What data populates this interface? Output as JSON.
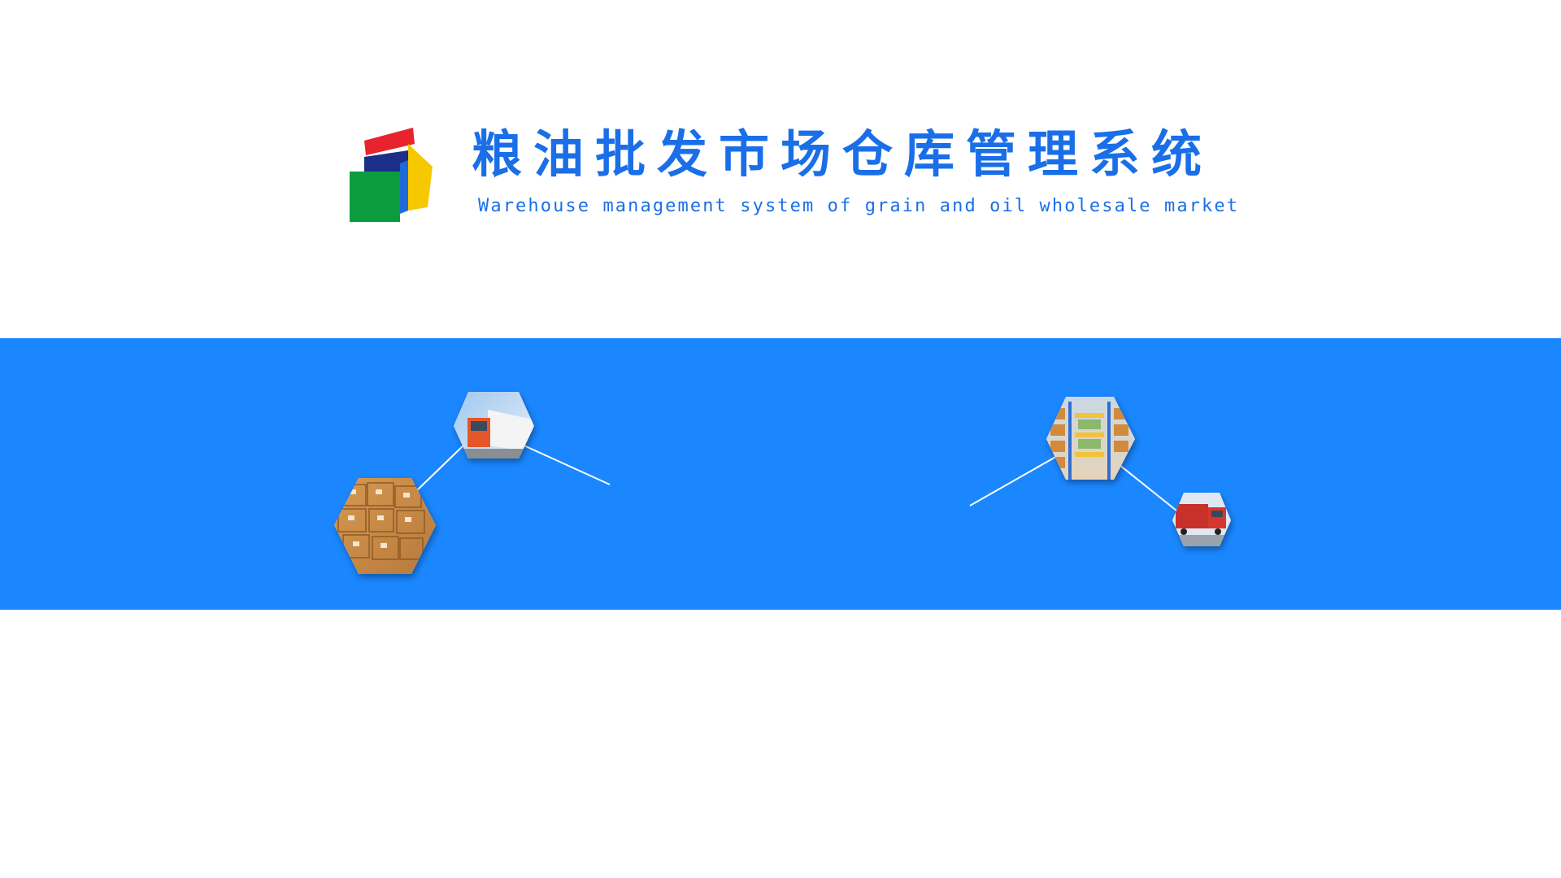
{
  "header": {
    "title": "粮油批发市场仓库管理系统",
    "subtitle": "Warehouse management system of grain and oil wholesale market"
  },
  "colors": {
    "brand_blue": "#1a6fe8",
    "band": "#1b87ff",
    "logo_red": "#e8232e",
    "logo_green": "#0a9c3e",
    "logo_yellow": "#f6c800",
    "logo_navy": "#1a2e8a",
    "logo_blue": "#1f6ad6"
  },
  "decorations": {
    "left_cluster": [
      "delivery-truck-photo",
      "cardboard-boxes-photo"
    ],
    "right_cluster": [
      "warehouse-shelves-photo",
      "red-truck-photo"
    ]
  }
}
